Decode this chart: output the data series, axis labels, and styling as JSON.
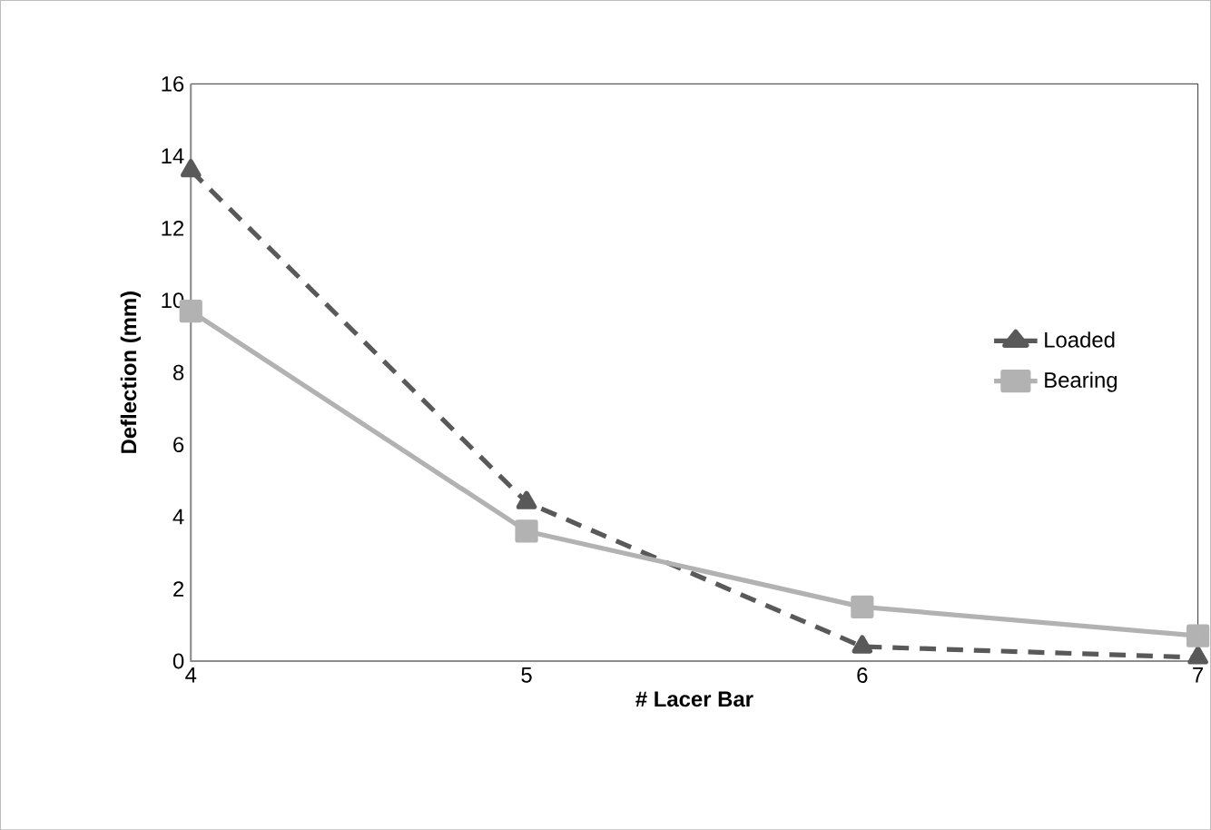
{
  "chart_data": {
    "type": "line",
    "xlabel": "#  Lacer Bar",
    "ylabel": "Deflection (mm)",
    "x": [
      4,
      5,
      6,
      7
    ],
    "xlim": [
      4,
      7
    ],
    "xticks": [
      4,
      5,
      6,
      7
    ],
    "ylim": [
      0,
      16
    ],
    "yticks": [
      0,
      2,
      4,
      6,
      8,
      10,
      12,
      14,
      16
    ],
    "grid": false,
    "legend": "right",
    "series": [
      {
        "name": "Loaded",
        "color": "#595959",
        "values": [
          13.6,
          4.4,
          0.4,
          0.1
        ],
        "marker": "triangle",
        "line_style": "dashed"
      },
      {
        "name": "Bearing",
        "color": "#b2b2b2",
        "values": [
          9.7,
          3.6,
          1.5,
          0.7
        ],
        "marker": "square",
        "line_style": "solid"
      }
    ]
  }
}
